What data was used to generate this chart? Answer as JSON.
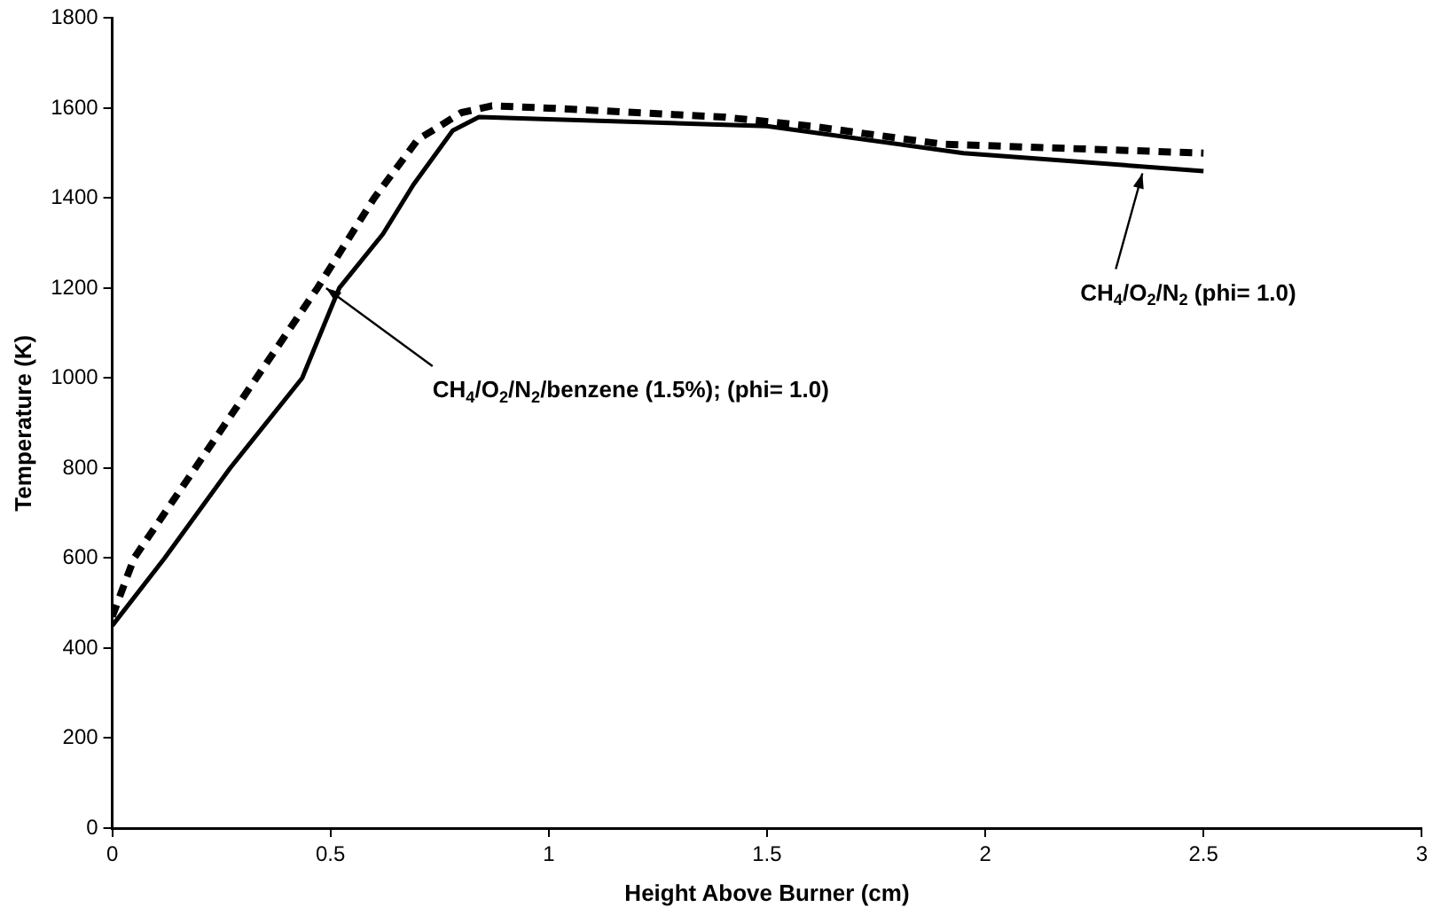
{
  "chart_data": {
    "type": "line",
    "xlabel": "Height Above Burner (cm)",
    "ylabel": "Temperature (K)",
    "xlim": [
      0,
      3
    ],
    "xticks": [
      0,
      0.5,
      1,
      1.5,
      2,
      2.5,
      3
    ],
    "ylim": [
      0,
      1800
    ],
    "yticks": [
      0,
      200,
      400,
      600,
      800,
      1000,
      1200,
      1400,
      1600,
      1800
    ],
    "grid": false,
    "legend": false,
    "marker": "none",
    "series": [
      {
        "color": "#000000",
        "line_style": "dashed",
        "x": [
          0,
          0.05,
          0.19,
          0.33,
          0.47,
          0.6,
          0.7,
          0.8,
          0.87,
          1.0,
          1.4,
          1.6,
          1.9,
          2.5
        ],
        "values": [
          470,
          600,
          800,
          1000,
          1200,
          1400,
          1530,
          1590,
          1605,
          1600,
          1580,
          1560,
          1520,
          1500
        ]
      },
      {
        "color": "#000000",
        "line_style": "solid",
        "x": [
          0,
          0.12,
          0.27,
          0.435,
          0.52,
          0.62,
          0.69,
          0.78,
          0.84,
          1.0,
          1.5,
          1.95,
          2.5
        ],
        "values": [
          450,
          600,
          800,
          1000,
          1200,
          1320,
          1430,
          1550,
          1580,
          1575,
          1560,
          1500,
          1460
        ]
      }
    ],
    "annotations": [
      {
        "text": "CH$_{4}$/O$_{2}$/N$_{2}$/benzene (1.5%); (phi= 1.0)",
        "x": 0.49,
        "y": 1200
      },
      {
        "text": "CH$_{4}$/O$_{2}$/N$_{2}$ (phi= 1.0)",
        "x": 2.36,
        "y": 1455
      }
    ]
  }
}
